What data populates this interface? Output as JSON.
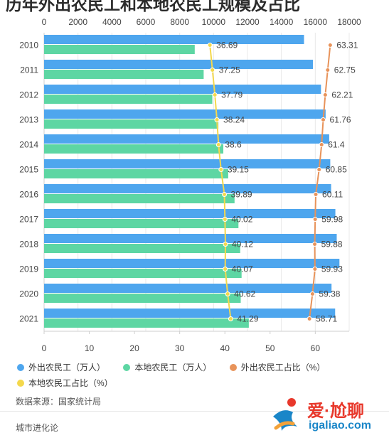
{
  "page": {
    "title": "历年外出农民工和本地农民工规模及占比"
  },
  "chart_data": {
    "type": "bar",
    "orientation": "horizontal",
    "categories": [
      "2010",
      "2011",
      "2012",
      "2013",
      "2014",
      "2015",
      "2016",
      "2017",
      "2018",
      "2019",
      "2020",
      "2021"
    ],
    "series": [
      {
        "name": "外出农民工（万人）",
        "kind": "bar",
        "axis": "top",
        "color": "#4ea6ee",
        "values": [
          15335,
          15863,
          16336,
          16610,
          16821,
          16884,
          16934,
          17185,
          17266,
          17425,
          16959,
          17172
        ]
      },
      {
        "name": "本地农民工（万人）",
        "kind": "bar",
        "axis": "top",
        "color": "#5dd6a3",
        "values": [
          8888,
          9415,
          9925,
          10284,
          10574,
          10863,
          11237,
          11467,
          11570,
          11652,
          11601,
          12079
        ]
      },
      {
        "name": "外出农民工占比（%）",
        "kind": "line",
        "axis": "bottom",
        "color": "#e8935a",
        "values": [
          63.31,
          62.75,
          62.21,
          61.76,
          61.4,
          60.85,
          60.11,
          59.98,
          59.88,
          59.93,
          59.38,
          58.71
        ]
      },
      {
        "name": "本地农民工占比（%）",
        "kind": "line",
        "axis": "bottom",
        "color": "#f4d84c",
        "values": [
          36.69,
          37.25,
          37.79,
          38.24,
          38.6,
          39.15,
          39.89,
          40.02,
          40.12,
          40.07,
          40.62,
          41.29
        ]
      }
    ],
    "x_top_range": [
      0,
      18000
    ],
    "x_top_ticks": [
      "0",
      "2000",
      "4000",
      "6000",
      "8000",
      "10000",
      "12000",
      "14000",
      "16000",
      "18000"
    ],
    "x_bottom_range": [
      0,
      67.5
    ],
    "x_bottom_ticks": [
      "0",
      "10",
      "20",
      "30",
      "40",
      "50",
      "60"
    ],
    "grid": true,
    "legend_position": "bottom"
  },
  "source_text": "数据来源：国家统计局",
  "brand_text": "城市进化论",
  "logo": {
    "main": "爱·尬聊",
    "url": "igaliao.com"
  },
  "colors": {
    "outflow": "#4ea6ee",
    "local": "#5dd6a3",
    "outflow_share": "#e8935a",
    "local_share": "#f4d84c"
  }
}
